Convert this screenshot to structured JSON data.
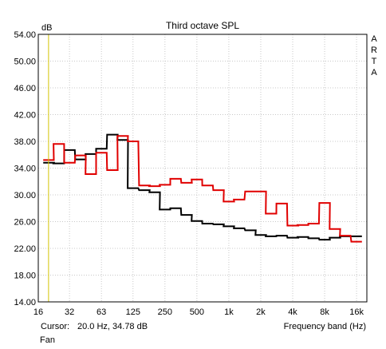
{
  "chart_data": {
    "type": "line",
    "title": "Third octave SPL",
    "ylabel": "dB",
    "xlabel": "Frequency band (Hz)",
    "brand_letters": [
      "A",
      "R",
      "T",
      "A"
    ],
    "cursor": {
      "label": "Cursor:",
      "value": "20.0 Hz, 34.78 dB",
      "x": 20.0,
      "y": 34.78
    },
    "footer_label": "Fan",
    "x_scale": "log",
    "xlim": [
      16,
      20000
    ],
    "ylim": [
      14,
      54
    ],
    "grid": true,
    "y_ticks": [
      "14.00",
      "18.00",
      "22.00",
      "26.00",
      "30.00",
      "34.00",
      "38.00",
      "42.00",
      "46.00",
      "50.00",
      "54.00"
    ],
    "x_ticks": [
      {
        "label": "16",
        "x": 16
      },
      {
        "label": "32",
        "x": 31.5
      },
      {
        "label": "63",
        "x": 63
      },
      {
        "label": "125",
        "x": 125
      },
      {
        "label": "250",
        "x": 250
      },
      {
        "label": "500",
        "x": 500
      },
      {
        "label": "1k",
        "x": 1000
      },
      {
        "label": "2k",
        "x": 2000
      },
      {
        "label": "4k",
        "x": 4000
      },
      {
        "label": "8k",
        "x": 8000
      },
      {
        "label": "16k",
        "x": 16000
      }
    ],
    "band_centers": [
      20,
      25,
      31.5,
      40,
      50,
      63,
      80,
      100,
      125,
      160,
      200,
      250,
      315,
      400,
      500,
      630,
      800,
      1000,
      1250,
      1600,
      2000,
      2500,
      3150,
      4000,
      5000,
      6300,
      8000,
      10000,
      12500,
      16000
    ],
    "series": [
      {
        "color": "#000000",
        "values": [
          34.8,
          34.7,
          36.7,
          35.3,
          36.1,
          36.9,
          39.0,
          38.2,
          31.0,
          30.7,
          30.4,
          27.8,
          28.0,
          27.0,
          26.1,
          25.7,
          25.6,
          25.3,
          25.0,
          24.7,
          24.0,
          23.8,
          23.9,
          23.6,
          23.7,
          23.5,
          23.3,
          23.6,
          23.8,
          23.8
        ]
      },
      {
        "color": "#e00000",
        "values": [
          35.2,
          37.6,
          34.8,
          35.9,
          33.1,
          36.3,
          33.7,
          38.8,
          38.0,
          31.4,
          31.3,
          31.5,
          32.4,
          31.8,
          32.3,
          31.4,
          30.7,
          29.0,
          29.3,
          30.5,
          30.5,
          27.2,
          28.7,
          25.4,
          25.5,
          25.7,
          28.8,
          24.9,
          23.9,
          23.0
        ]
      }
    ],
    "cursor_color": "#d4c400"
  }
}
